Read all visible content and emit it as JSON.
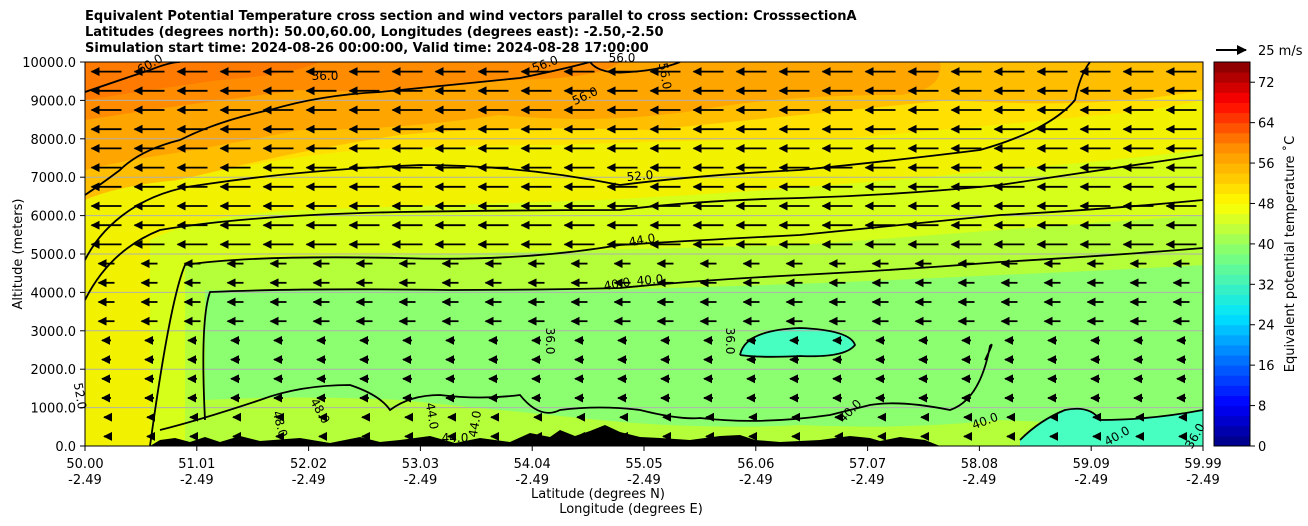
{
  "chart_data": {
    "type": "heatmap",
    "title_lines": [
      "Equivalent Potential Temperature cross section and wind vectors parallel to cross section: CrosssectionA",
      "Latitudes (degrees north): 50.00,60.00, Longitudes (degrees east): -2.50,-2.50",
      "Simulation start time: 2024-08-26 00:00:00, Valid time: 2024-08-28 17:00:00"
    ],
    "ylabel": "Altitude (meters)",
    "xlabel_lines": [
      "Latitude (degrees N)",
      "Longitude (degrees E)"
    ],
    "ylim": [
      0,
      10000
    ],
    "y_ticks": [
      "0.0",
      "1000.0",
      "2000.0",
      "3000.0",
      "4000.0",
      "5000.0",
      "6000.0",
      "7000.0",
      "8000.0",
      "9000.0",
      "10000.0"
    ],
    "x_ticks": [
      {
        "lat": "50.00",
        "lon": "-2.49"
      },
      {
        "lat": "51.01",
        "lon": "-2.49"
      },
      {
        "lat": "52.02",
        "lon": "-2.49"
      },
      {
        "lat": "53.03",
        "lon": "-2.49"
      },
      {
        "lat": "54.04",
        "lon": "-2.49"
      },
      {
        "lat": "55.05",
        "lon": "-2.49"
      },
      {
        "lat": "56.06",
        "lon": "-2.49"
      },
      {
        "lat": "57.07",
        "lon": "-2.49"
      },
      {
        "lat": "58.08",
        "lon": "-2.49"
      },
      {
        "lat": "59.09",
        "lon": "-2.49"
      },
      {
        "lat": "59.99",
        "lon": "-2.49"
      }
    ],
    "quiver_key": "25 m/s",
    "colorbar": {
      "label": "Equivalent potential temperature ˚C",
      "range": [
        0,
        76
      ],
      "ticks": [
        "0",
        "8",
        "16",
        "24",
        "32",
        "40",
        "48",
        "56",
        "64",
        "72"
      ]
    },
    "contour_labels": [
      "60.0",
      "56.0",
      "56.0",
      "56.0",
      "56.0",
      "52.0",
      "52.0",
      "48.0",
      "48.0",
      "44.0",
      "44.0",
      "44.0",
      "44.0",
      "40.0",
      "40.0",
      "40.0",
      "40.0",
      "40.0",
      "36.0",
      "36.0",
      "36.0",
      "36.0"
    ],
    "contour_levels": [
      36,
      40,
      44,
      48,
      52,
      56,
      60
    ],
    "grid": "horizontal",
    "colors": {
      "terrain": "#000000",
      "contour": "#000000"
    }
  }
}
